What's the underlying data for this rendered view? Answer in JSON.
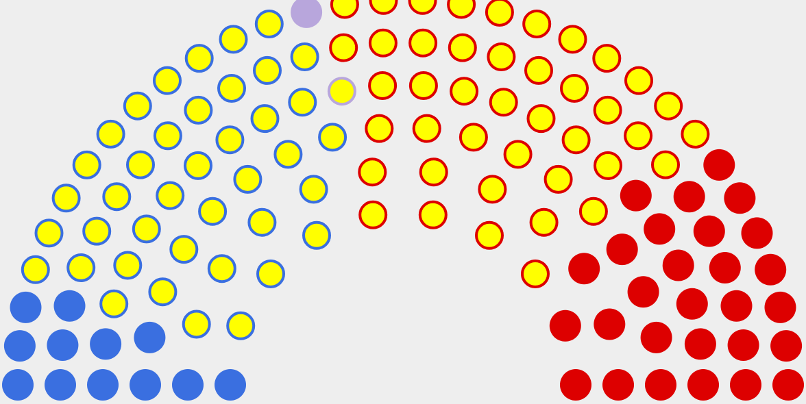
{
  "chart_data": {
    "type": "parliament",
    "colors": {
      "blue": "#3a6fe0",
      "red": "#dd0000",
      "lavender": "#b8a6dc",
      "yellow": "#ffff00"
    },
    "groups": [
      {
        "fill": "blue",
        "ring": null,
        "count": 12
      },
      {
        "fill": "yellow",
        "ring": "blue",
        "count": 40
      },
      {
        "fill": "lavender",
        "ring": null,
        "count": 1
      },
      {
        "fill": "yellow",
        "ring": "lavender",
        "count": 1
      },
      {
        "fill": "yellow",
        "ring": "red",
        "count": 42
      },
      {
        "fill": "red",
        "ring": null,
        "count": 28
      }
    ],
    "total_seats": 124
  }
}
